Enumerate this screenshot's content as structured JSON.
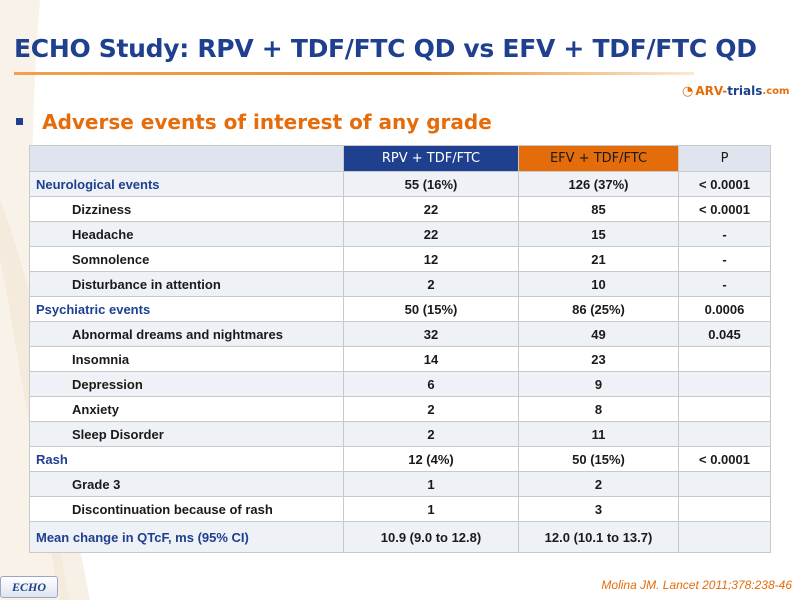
{
  "slide": {
    "title": "ECHO Study: RPV + TDF/FTC QD vs EFV + TDF/FTC QD",
    "logo": {
      "prefix": "ARV-",
      "middle": "trials",
      "suffix": ".com"
    },
    "bullet": "Adverse events of interest of any grade",
    "badge": "ECHO",
    "citation": "Molina JM. Lancet 2011;378:238-46",
    "colors": {
      "primary": "#1f3f8f",
      "accent": "#e46c0a",
      "row_alt": "#eef1f6"
    }
  },
  "table": {
    "headers": [
      "",
      "RPV + TDF/FTC",
      "EFV + TDF/FTC",
      "P"
    ],
    "rows": [
      {
        "label": "Neurological events",
        "level": "category",
        "rpv": "55 (16%)",
        "efv": "126 (37%)",
        "p": "< 0.0001"
      },
      {
        "label": "Dizziness",
        "level": "sub",
        "rpv": "22",
        "efv": "85",
        "p": "< 0.0001"
      },
      {
        "label": "Headache",
        "level": "sub",
        "rpv": "22",
        "efv": "15",
        "p": "-"
      },
      {
        "label": "Somnolence",
        "level": "sub",
        "rpv": "12",
        "efv": "21",
        "p": "-"
      },
      {
        "label": "Disturbance in attention",
        "level": "sub",
        "rpv": "2",
        "efv": "10",
        "p": "-"
      },
      {
        "label": "Psychiatric events",
        "level": "category",
        "rpv": "50 (15%)",
        "efv": "86 (25%)",
        "p": "0.0006"
      },
      {
        "label": "Abnormal dreams and nightmares",
        "level": "sub",
        "rpv": "32",
        "efv": "49",
        "p": "0.045"
      },
      {
        "label": "Insomnia",
        "level": "sub",
        "rpv": "14",
        "efv": "23",
        "p": ""
      },
      {
        "label": "Depression",
        "level": "sub",
        "rpv": "6",
        "efv": "9",
        "p": ""
      },
      {
        "label": "Anxiety",
        "level": "sub",
        "rpv": "2",
        "efv": "8",
        "p": ""
      },
      {
        "label": "Sleep Disorder",
        "level": "sub",
        "rpv": "2",
        "efv": "11",
        "p": ""
      },
      {
        "label": "Rash",
        "level": "category",
        "rpv": "12 (4%)",
        "efv": "50 (15%)",
        "p": "< 0.0001"
      },
      {
        "label": "Grade 3",
        "level": "sub",
        "rpv": "1",
        "efv": "2",
        "p": ""
      },
      {
        "label": "Discontinuation because of rash",
        "level": "sub",
        "rpv": "1",
        "efv": "3",
        "p": ""
      },
      {
        "label": "Mean change in QTcF, ms (95% CI)",
        "level": "category",
        "rpv": "10.9 (9.0 to 12.8)",
        "efv": "12.0 (10.1 to 13.7)",
        "p": ""
      }
    ]
  }
}
